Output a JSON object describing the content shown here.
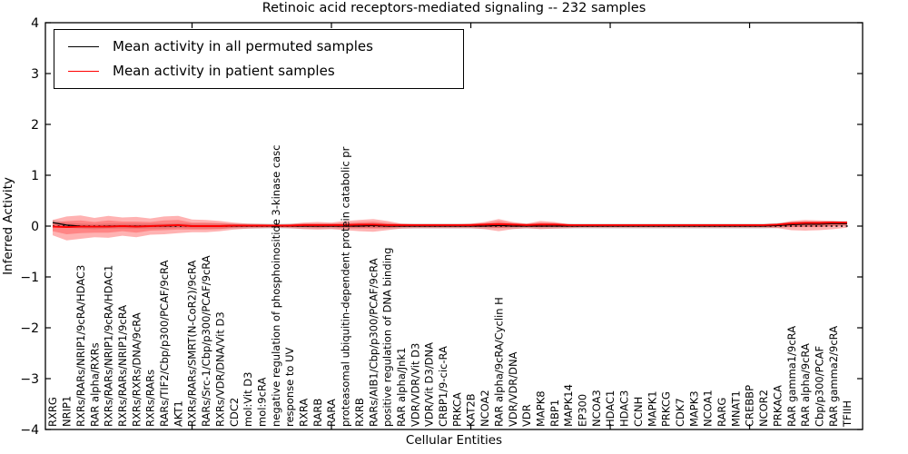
{
  "chart_data": {
    "type": "line",
    "title": "Retinoic acid receptors-mediated signaling -- 232 samples",
    "xlabel": "Cellular Entities",
    "ylabel": "Inferred Activity",
    "ylim": [
      -4,
      4
    ],
    "yticks": [
      -4,
      -3,
      -2,
      -1,
      0,
      1,
      2,
      3,
      4
    ],
    "top_tick_indices": [
      10,
      20,
      30,
      40,
      50
    ],
    "grid": false,
    "legend_position": "upper left",
    "zero_line": {
      "style": "dotted",
      "color": "#000000",
      "y": 0
    },
    "categories": [
      "RXRG",
      "NRIP1",
      "RXRs/RARs/NRIP1/9cRA/HDAC3",
      "RAR alpha/RXRs",
      "RXRs/RARs/NRIP1/9cRA/HDAC1",
      "RXRs/RARs/NRIP1/9cRA",
      "RXRs/RXRs/DNA/9cRA",
      "RXRs/RARs",
      "RARs/TIF2/Cbp/p300/PCAF/9cRA",
      "AKT1",
      "RXRs/RARs/SMRT(N-CoR2)/9cRA",
      "RARs/Src-1/Cbp/p300/PCAF/9cRA",
      "RXRs/VDR/DNA/Vit D3",
      "CDC2",
      "mol:Vit D3",
      "mol:9cRA",
      "negative regulation of phosphoinositide 3-kinase casc",
      "response to UV",
      "RXRA",
      "RARB",
      "RARA",
      "proteasomal ubiquitin-dependent protein catabolic pr",
      "RXRB",
      "RARs/AIB1/Cbp/p300/PCAF/9cRA",
      "positive regulation of DNA binding",
      "RAR alpha/Jnk1",
      "VDR/VDR/Vit D3",
      "VDR/Vit D3/DNA",
      "CRBP1/9-cic-RA",
      "PRKCA",
      "KAT2B",
      "NCOA2",
      "RAR alpha/9cRA/Cyclin H",
      "VDR/VDR/DNA",
      "VDR",
      "MAPK8",
      "RBP1",
      "MAPK14",
      "EP300",
      "NCOA3",
      "HDAC1",
      "HDAC3",
      "CCNH",
      "MAPK1",
      "PRKCG",
      "CDK7",
      "MAPK3",
      "NCOA1",
      "RARG",
      "MNAT1",
      "CREBBP",
      "NCOR2",
      "PRKACA",
      "RAR gamma1/9cRA",
      "RAR alpha/9cRA",
      "Cbp/p300/PCAF",
      "RAR gamma2/9cRA",
      "TFIIH"
    ],
    "series": [
      {
        "name": "Mean activity in all permuted samples",
        "color": "#000000",
        "width": 1.3,
        "values": [
          0.07,
          0.02,
          0.0,
          -0.01,
          0.0,
          0.0,
          0.0,
          0.0,
          0.0,
          0.01,
          0.0,
          0.0,
          0.0,
          0.0,
          0.0,
          0.0,
          0.0,
          0.0,
          0.0,
          0.0,
          0.0,
          0.0,
          0.0,
          0.01,
          0.0,
          0.0,
          0.0,
          0.0,
          0.0,
          0.0,
          0.0,
          0.0,
          0.01,
          0.0,
          0.0,
          0.0,
          0.0,
          0.0,
          0.0,
          0.0,
          0.0,
          0.0,
          0.0,
          0.0,
          0.0,
          0.0,
          0.0,
          0.0,
          0.0,
          0.0,
          0.0,
          0.0,
          0.01,
          0.03,
          0.04,
          0.04,
          0.05,
          0.05
        ]
      },
      {
        "name": "Mean activity in patient samples",
        "color": "#ff0000",
        "width": 1.9,
        "values": [
          -0.01,
          -0.02,
          -0.01,
          -0.01,
          -0.01,
          0.0,
          -0.01,
          0.0,
          0.01,
          0.02,
          0.0,
          0.0,
          0.0,
          0.01,
          0.01,
          0.01,
          0.01,
          0.01,
          0.02,
          0.02,
          0.02,
          0.02,
          0.03,
          0.03,
          0.02,
          0.02,
          0.02,
          0.02,
          0.02,
          0.02,
          0.02,
          0.03,
          0.04,
          0.03,
          0.02,
          0.03,
          0.03,
          0.02,
          0.02,
          0.02,
          0.02,
          0.02,
          0.02,
          0.02,
          0.02,
          0.02,
          0.02,
          0.02,
          0.02,
          0.02,
          0.02,
          0.02,
          0.03,
          0.05,
          0.06,
          0.06,
          0.07,
          0.07
        ]
      }
    ],
    "bands": [
      {
        "name": "permuted-samples-std",
        "color": "#000000",
        "opacity": 0.15,
        "upper": [
          0.12,
          0.07,
          0.05,
          0.04,
          0.05,
          0.05,
          0.05,
          0.05,
          0.05,
          0.06,
          0.05,
          0.05,
          0.05,
          0.05,
          0.05,
          0.05,
          0.05,
          0.05,
          0.05,
          0.05,
          0.05,
          0.05,
          0.05,
          0.06,
          0.05,
          0.05,
          0.05,
          0.05,
          0.05,
          0.05,
          0.05,
          0.05,
          0.06,
          0.05,
          0.05,
          0.05,
          0.05,
          0.05,
          0.05,
          0.05,
          0.05,
          0.05,
          0.05,
          0.05,
          0.05,
          0.05,
          0.05,
          0.05,
          0.05,
          0.05,
          0.05,
          0.05,
          0.06,
          0.08,
          0.09,
          0.09,
          0.1,
          0.1
        ],
        "lower": [
          0.02,
          -0.03,
          -0.05,
          -0.06,
          -0.05,
          -0.05,
          -0.05,
          -0.05,
          -0.05,
          -0.04,
          -0.05,
          -0.05,
          -0.05,
          -0.05,
          -0.05,
          -0.05,
          -0.05,
          -0.05,
          -0.05,
          -0.05,
          -0.05,
          -0.05,
          -0.05,
          -0.04,
          -0.05,
          -0.05,
          -0.05,
          -0.05,
          -0.05,
          -0.05,
          -0.05,
          -0.05,
          -0.04,
          -0.05,
          -0.05,
          -0.05,
          -0.05,
          -0.05,
          -0.05,
          -0.05,
          -0.05,
          -0.05,
          -0.05,
          -0.05,
          -0.05,
          -0.05,
          -0.05,
          -0.05,
          -0.05,
          -0.05,
          -0.05,
          -0.05,
          -0.04,
          -0.02,
          -0.01,
          -0.01,
          0.0,
          0.0
        ]
      },
      {
        "name": "patient-samples-std-outer",
        "color": "#ff0000",
        "opacity": 0.3,
        "upper": [
          0.12,
          0.19,
          0.21,
          0.16,
          0.2,
          0.17,
          0.18,
          0.15,
          0.19,
          0.2,
          0.13,
          0.12,
          0.1,
          0.07,
          0.05,
          0.04,
          0.03,
          0.04,
          0.07,
          0.08,
          0.07,
          0.1,
          0.12,
          0.14,
          0.1,
          0.05,
          0.04,
          0.04,
          0.04,
          0.04,
          0.05,
          0.08,
          0.14,
          0.08,
          0.05,
          0.1,
          0.08,
          0.04,
          0.03,
          0.03,
          0.03,
          0.03,
          0.03,
          0.03,
          0.03,
          0.03,
          0.03,
          0.03,
          0.03,
          0.03,
          0.03,
          0.03,
          0.05,
          0.1,
          0.12,
          0.11,
          0.1,
          0.08
        ],
        "lower": [
          -0.18,
          -0.28,
          -0.25,
          -0.22,
          -0.23,
          -0.19,
          -0.22,
          -0.17,
          -0.16,
          -0.14,
          -0.12,
          -0.12,
          -0.1,
          -0.07,
          -0.05,
          -0.04,
          -0.03,
          -0.04,
          -0.06,
          -0.07,
          -0.06,
          -0.08,
          -0.1,
          -0.11,
          -0.08,
          -0.05,
          -0.04,
          -0.04,
          -0.04,
          -0.04,
          -0.04,
          -0.06,
          -0.1,
          -0.06,
          -0.04,
          -0.06,
          -0.05,
          -0.04,
          -0.03,
          -0.03,
          -0.03,
          -0.03,
          -0.03,
          -0.03,
          -0.03,
          -0.03,
          -0.03,
          -0.03,
          -0.03,
          -0.03,
          -0.03,
          -0.03,
          -0.04,
          -0.08,
          -0.09,
          -0.08,
          -0.06,
          -0.03
        ]
      },
      {
        "name": "patient-samples-std-inner",
        "color": "#ff0000",
        "opacity": 0.25,
        "upper": [
          0.06,
          0.1,
          0.11,
          0.08,
          0.11,
          0.09,
          0.09,
          0.08,
          0.11,
          0.12,
          0.07,
          0.07,
          0.06,
          0.04,
          0.03,
          0.03,
          0.02,
          0.03,
          0.05,
          0.05,
          0.05,
          0.06,
          0.08,
          0.09,
          0.06,
          0.04,
          0.03,
          0.03,
          0.03,
          0.03,
          0.04,
          0.06,
          0.1,
          0.06,
          0.04,
          0.07,
          0.06,
          0.03,
          0.03,
          0.03,
          0.03,
          0.03,
          0.03,
          0.03,
          0.03,
          0.03,
          0.03,
          0.03,
          0.03,
          0.03,
          0.03,
          0.03,
          0.04,
          0.08,
          0.09,
          0.09,
          0.09,
          0.08
        ],
        "lower": [
          -0.1,
          -0.16,
          -0.14,
          -0.13,
          -0.13,
          -0.1,
          -0.13,
          -0.09,
          -0.08,
          -0.07,
          -0.07,
          -0.07,
          -0.06,
          -0.03,
          -0.02,
          -0.02,
          -0.01,
          -0.02,
          -0.02,
          -0.03,
          -0.02,
          -0.04,
          -0.04,
          -0.05,
          -0.04,
          -0.02,
          -0.01,
          -0.01,
          -0.01,
          -0.01,
          -0.01,
          -0.02,
          -0.04,
          -0.02,
          -0.01,
          -0.02,
          -0.01,
          -0.01,
          -0.01,
          -0.01,
          -0.01,
          -0.01,
          -0.01,
          -0.01,
          -0.01,
          -0.01,
          -0.01,
          -0.01,
          -0.01,
          -0.01,
          -0.01,
          -0.01,
          -0.01,
          -0.02,
          -0.02,
          -0.02,
          0.0,
          0.02
        ]
      }
    ]
  }
}
